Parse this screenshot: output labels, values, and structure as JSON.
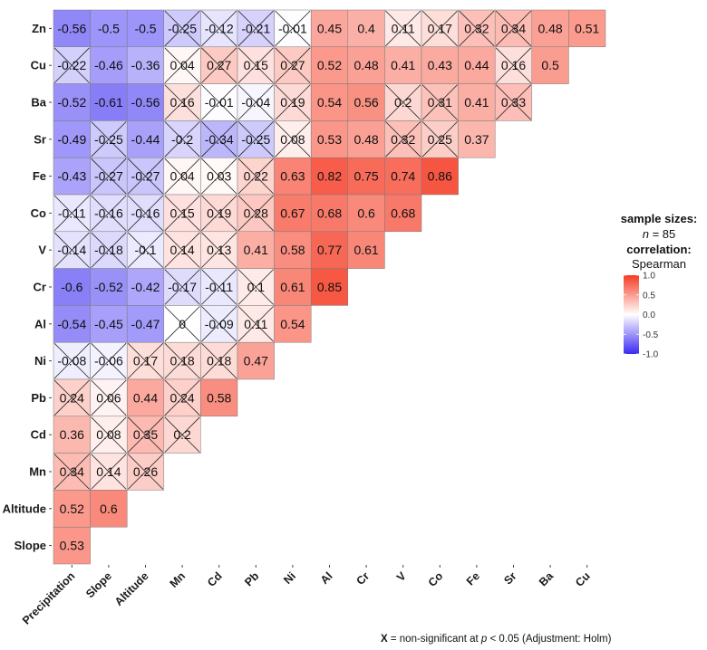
{
  "chart_data": {
    "type": "heatmap",
    "title": "",
    "variables_rows": [
      "Zn",
      "Cu",
      "Ba",
      "Sr",
      "Fe",
      "Co",
      "V",
      "Cr",
      "Al",
      "Ni",
      "Pb",
      "Cd",
      "Mn",
      "Altitude",
      "Slope"
    ],
    "variables_cols": [
      "Precipitation",
      "Slope",
      "Altitude",
      "Mn",
      "Cd",
      "Pb",
      "Ni",
      "Al",
      "Cr",
      "V",
      "Co",
      "Fe",
      "Sr",
      "Ba",
      "Cu"
    ],
    "cells": [
      [
        -0.56,
        -0.5,
        -0.5,
        -0.25,
        -0.12,
        -0.21,
        -0.01,
        0.45,
        0.4,
        0.11,
        0.17,
        0.32,
        0.34,
        0.48,
        0.51
      ],
      [
        -0.22,
        -0.46,
        -0.36,
        0.04,
        0.27,
        0.15,
        0.27,
        0.52,
        0.48,
        0.41,
        0.43,
        0.44,
        0.16,
        0.5
      ],
      [
        -0.52,
        -0.61,
        -0.56,
        0.16,
        -0.01,
        -0.04,
        0.19,
        0.54,
        0.56,
        0.2,
        0.31,
        0.41,
        0.33
      ],
      [
        -0.49,
        -0.25,
        -0.44,
        -0.2,
        -0.34,
        -0.25,
        0.08,
        0.53,
        0.48,
        0.32,
        0.25,
        0.37
      ],
      [
        -0.43,
        -0.27,
        -0.27,
        0.04,
        0.03,
        0.22,
        0.63,
        0.82,
        0.75,
        0.74,
        0.86
      ],
      [
        -0.11,
        -0.16,
        -0.16,
        0.15,
        0.19,
        0.28,
        0.67,
        0.68,
        0.6,
        0.68
      ],
      [
        -0.14,
        -0.18,
        -0.1,
        0.14,
        0.13,
        0.41,
        0.58,
        0.77,
        0.61
      ],
      [
        -0.6,
        -0.52,
        -0.42,
        -0.17,
        -0.11,
        0.1,
        0.61,
        0.85
      ],
      [
        -0.54,
        -0.45,
        -0.47,
        0,
        -0.09,
        0.11,
        0.54
      ],
      [
        -0.08,
        -0.06,
        0.17,
        0.18,
        0.18,
        0.47
      ],
      [
        0.24,
        0.06,
        0.44,
        0.24,
        0.58
      ],
      [
        0.36,
        0.08,
        0.35,
        0.2
      ],
      [
        0.34,
        0.14,
        0.26
      ],
      [
        0.52,
        0.6
      ],
      [
        0.53
      ]
    ],
    "non_significant": [
      [
        false,
        false,
        false,
        true,
        true,
        true,
        true,
        false,
        false,
        true,
        true,
        true,
        true,
        false,
        false
      ],
      [
        true,
        false,
        false,
        true,
        true,
        true,
        true,
        false,
        false,
        false,
        false,
        false,
        true,
        false
      ],
      [
        false,
        false,
        false,
        true,
        true,
        true,
        true,
        false,
        false,
        true,
        true,
        false,
        true
      ],
      [
        false,
        true,
        false,
        true,
        true,
        true,
        true,
        false,
        false,
        true,
        true,
        false
      ],
      [
        false,
        true,
        true,
        true,
        true,
        true,
        false,
        false,
        false,
        false,
        false
      ],
      [
        true,
        true,
        true,
        true,
        true,
        true,
        false,
        false,
        false,
        false
      ],
      [
        true,
        true,
        true,
        true,
        true,
        false,
        false,
        false,
        false
      ],
      [
        false,
        false,
        false,
        true,
        true,
        true,
        false,
        false
      ],
      [
        false,
        false,
        false,
        true,
        true,
        true,
        false
      ],
      [
        true,
        true,
        true,
        true,
        true,
        false
      ],
      [
        true,
        true,
        false,
        true,
        false
      ],
      [
        false,
        true,
        true,
        true
      ],
      [
        true,
        true,
        true
      ],
      [
        false,
        false
      ],
      [
        false
      ]
    ],
    "colors": {
      "low": "#3B2AF2",
      "mid": "#FFFFFF",
      "high": "#F53A22"
    },
    "scale_limits": [
      -1.0,
      1.0
    ],
    "legend_ticks": [
      "1.0",
      "0.5",
      "0.0",
      "-0.5",
      "-1.0"
    ],
    "legend_position": "right"
  },
  "legend": {
    "sample_sizes_title": "sample sizes:",
    "n_italic": "n",
    "n_value": " = 85",
    "correlation_title": "correlation:",
    "correlation_type": "Spearman"
  },
  "caption": {
    "symbol": "X",
    "text_before": " = non-significant at ",
    "p_italic": "p",
    "text_after": " < 0.05 (Adjustment: Holm)"
  }
}
